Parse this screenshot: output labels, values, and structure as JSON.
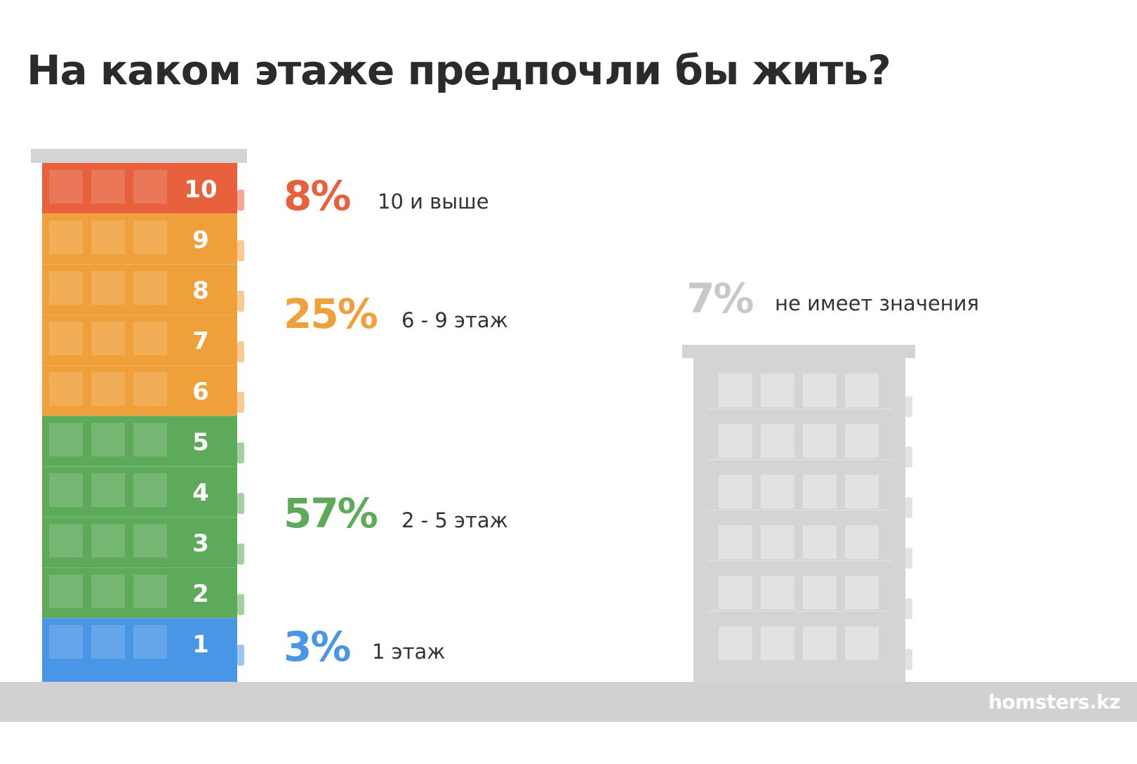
{
  "title": "На каком этаже предпочли бы жить?",
  "brand": "homsters.kz",
  "colors": {
    "orange_red": "#e8603c",
    "orange": "#f0a03a",
    "green": "#5daa5a",
    "blue": "#4a96e6",
    "gray": "#d4d4d4",
    "gray_text": "#c8c8c8",
    "ground": "#d1d1d1"
  },
  "floors": [
    {
      "label": "10",
      "color": "#e8603c"
    },
    {
      "label": "9",
      "color": "#f0a03a"
    },
    {
      "label": "8",
      "color": "#f0a03a"
    },
    {
      "label": "7",
      "color": "#f0a03a"
    },
    {
      "label": "6",
      "color": "#f0a03a"
    },
    {
      "label": "5",
      "color": "#5daa5a"
    },
    {
      "label": "4",
      "color": "#5daa5a"
    },
    {
      "label": "3",
      "color": "#5daa5a"
    },
    {
      "label": "2",
      "color": "#5daa5a"
    },
    {
      "label": "1",
      "color": "#4a96e6"
    }
  ],
  "chart_data": {
    "type": "bar",
    "title": "На каком этаже предпочли бы жить?",
    "unit": "%",
    "categories": [
      "10 и выше",
      "6 - 9 этаж",
      "2 - 5 этаж",
      "1 этаж",
      "не имеет значения"
    ],
    "values": [
      8,
      25,
      57,
      3,
      7
    ],
    "series": [
      {
        "category": "10 и выше",
        "value": 8,
        "pct_label": "8%",
        "color": "#e8603c"
      },
      {
        "category": "6 - 9 этаж",
        "value": 25,
        "pct_label": "25%",
        "color": "#f0a03a"
      },
      {
        "category": "2 - 5 этаж",
        "value": 57,
        "pct_label": "57%",
        "color": "#5daa5a"
      },
      {
        "category": "1 этаж",
        "value": 3,
        "pct_label": "3%",
        "color": "#4a96e6"
      },
      {
        "category": "не имеет значения",
        "value": 7,
        "pct_label": "7%",
        "color": "#c8c8c8"
      }
    ]
  }
}
